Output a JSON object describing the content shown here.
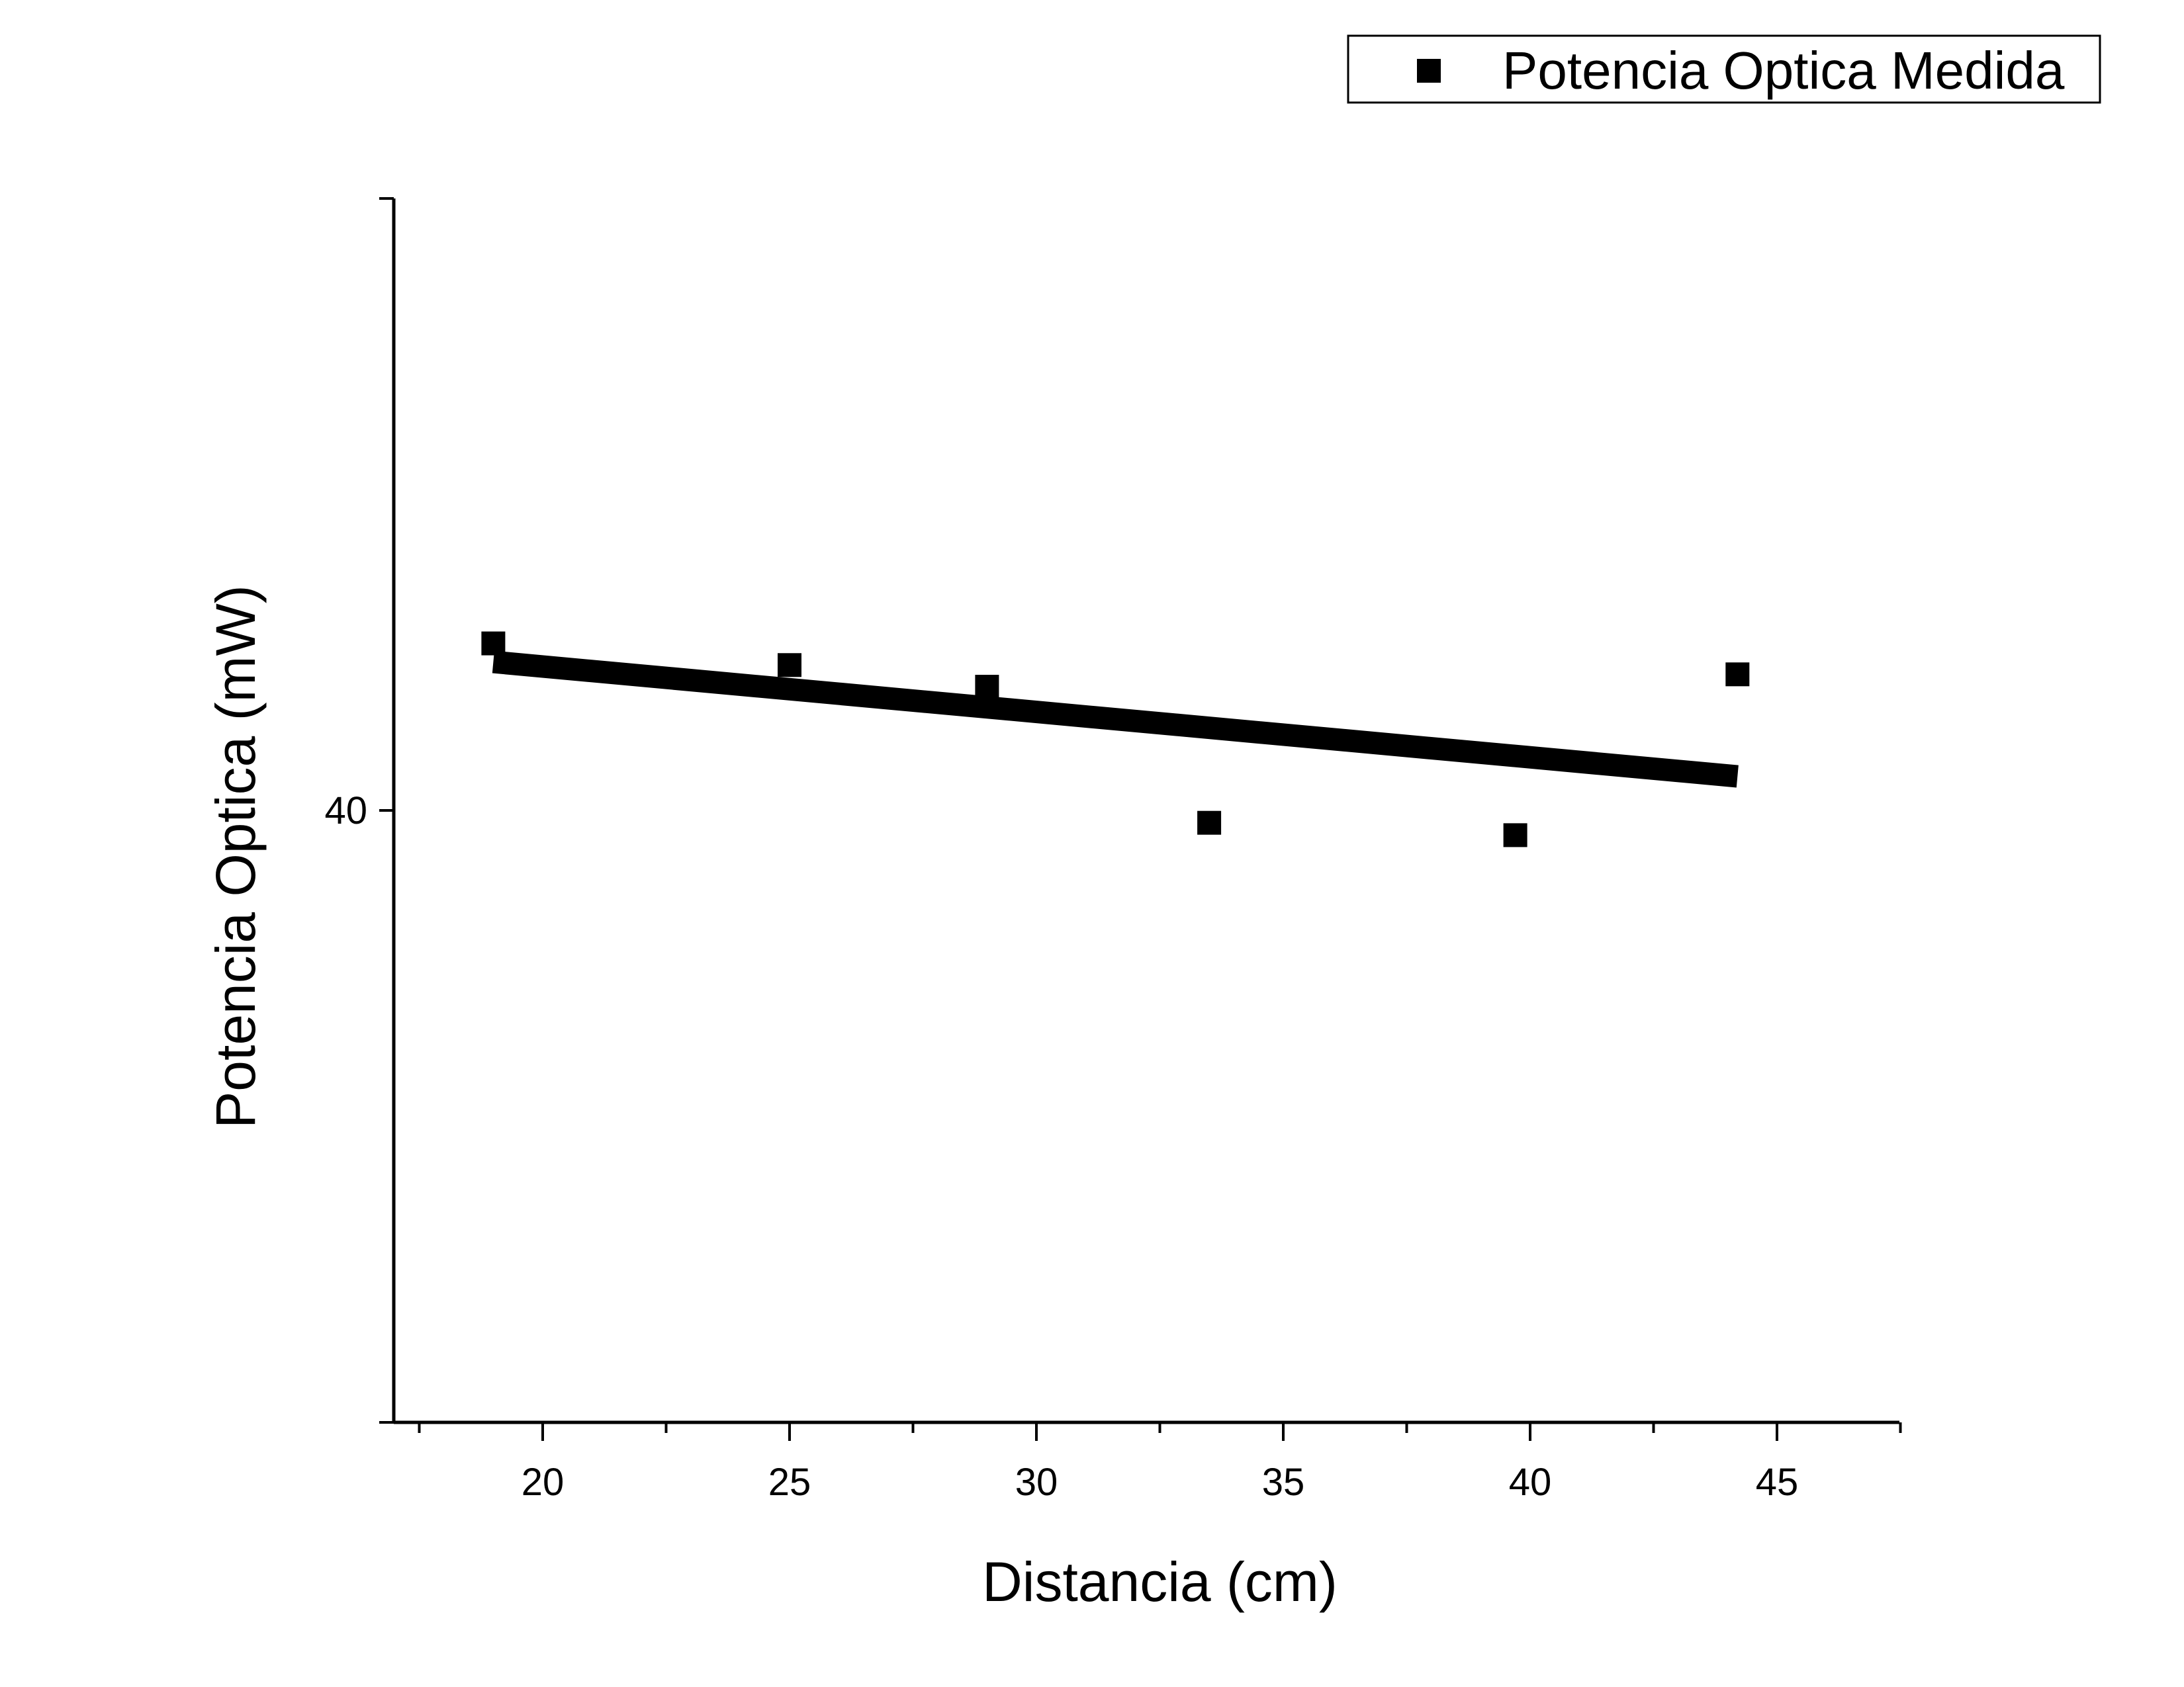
{
  "chart_data": {
    "type": "scatter",
    "xlabel": "Distancia (cm)",
    "ylabel": "Potencia Optica (mW)",
    "xlim": [
      17.5,
      48
    ],
    "x_ticks": [
      20,
      25,
      30,
      35,
      40,
      45
    ],
    "x_tick_labels": [
      "20",
      "25",
      "30",
      "35",
      "40",
      "45"
    ],
    "y_ticks": [
      40
    ],
    "y_tick_labels": [
      "40"
    ],
    "grid": false,
    "legend": {
      "position": "top-right",
      "entries": [
        "Potencia Optica Medida"
      ]
    },
    "series": [
      {
        "name": "Potencia Optica Medida",
        "marker": "square",
        "color": "#000000",
        "x": [
          19.0,
          25.0,
          29.0,
          33.5,
          39.7,
          44.2
        ],
        "y": [
          42.7,
          42.35,
          42.0,
          39.8,
          39.6,
          42.2
        ]
      }
    ],
    "fit_line": {
      "color": "#000000",
      "x": [
        19.0,
        44.2
      ],
      "y": [
        42.4,
        40.55
      ]
    }
  }
}
